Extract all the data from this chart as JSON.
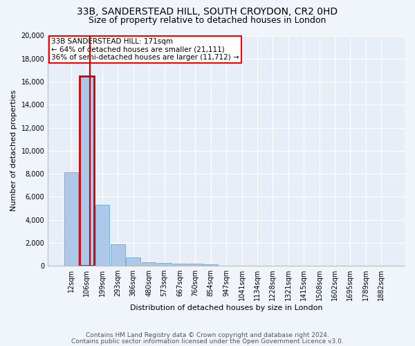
{
  "title1": "33B, SANDERSTEAD HILL, SOUTH CROYDON, CR2 0HD",
  "title2": "Size of property relative to detached houses in London",
  "xlabel": "Distribution of detached houses by size in London",
  "ylabel": "Number of detached properties",
  "bin_labels": [
    "12sqm",
    "106sqm",
    "199sqm",
    "293sqm",
    "386sqm",
    "480sqm",
    "573sqm",
    "667sqm",
    "760sqm",
    "854sqm",
    "947sqm",
    "1041sqm",
    "1134sqm",
    "1228sqm",
    "1321sqm",
    "1415sqm",
    "1508sqm",
    "1602sqm",
    "1695sqm",
    "1789sqm",
    "1882sqm"
  ],
  "bar_heights": [
    8100,
    16500,
    5300,
    1850,
    700,
    330,
    250,
    200,
    170,
    150,
    0,
    0,
    0,
    0,
    0,
    0,
    0,
    0,
    0,
    0,
    0
  ],
  "bar_color": "#adc8e8",
  "bar_edge_color": "#6aaad4",
  "highlight_color": "#cc0000",
  "highlight_bar_index": 1,
  "annotation_box_text": "33B SANDERSTEAD HILL: 171sqm\n← 64% of detached houses are smaller (21,111)\n36% of semi-detached houses are larger (11,712) →",
  "footer_line1": "Contains HM Land Registry data © Crown copyright and database right 2024.",
  "footer_line2": "Contains public sector information licensed under the Open Government Licence v3.0.",
  "background_color": "#f0f4fb",
  "plot_bg_color": "#e8eef8",
  "ylim": [
    0,
    20000
  ],
  "yticks": [
    0,
    2000,
    4000,
    6000,
    8000,
    10000,
    12000,
    14000,
    16000,
    18000,
    20000
  ],
  "grid_color": "#ffffff",
  "title_fontsize": 10,
  "subtitle_fontsize": 9,
  "axis_label_fontsize": 8,
  "tick_fontsize": 7,
  "footer_fontsize": 6.5,
  "annotation_fontsize": 7.5
}
